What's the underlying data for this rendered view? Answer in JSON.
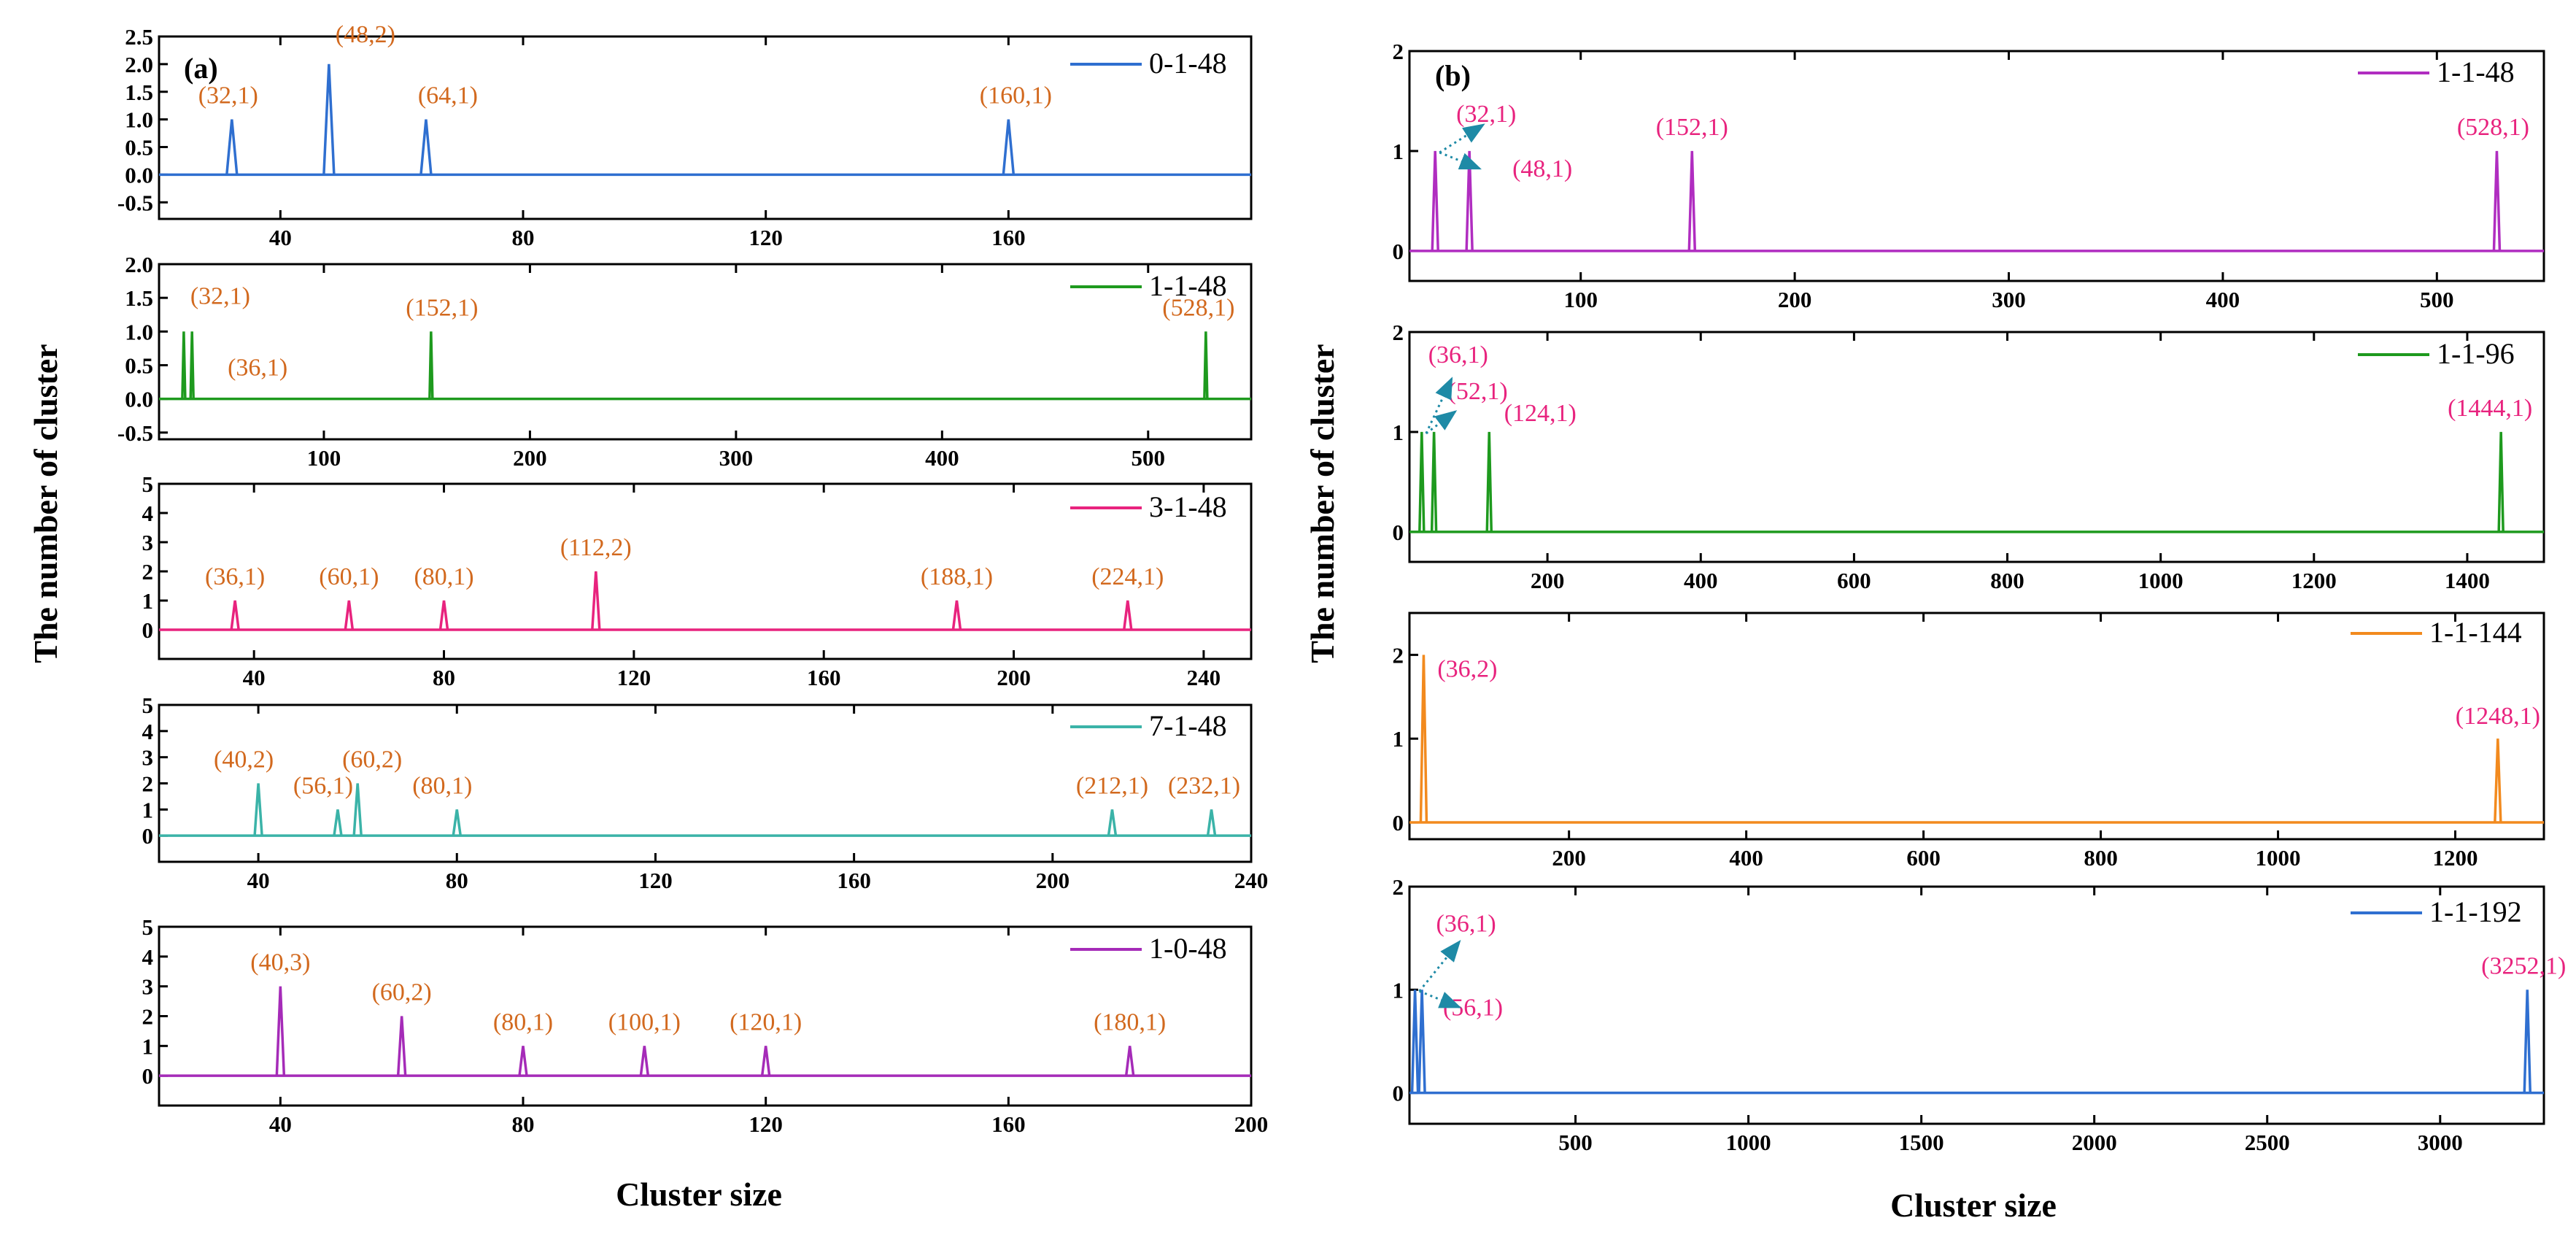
{
  "figure": {
    "ylabel_left": "The number of cluster",
    "ylabel_right": "The number of cluster",
    "xlabel_left": "Cluster size",
    "xlabel_right": "Cluster size",
    "panel_a_label": "(a)",
    "panel_b_label": "(b)"
  },
  "chart_data": [
    {
      "panel": "a",
      "type": "line",
      "series_name": "0-1-48",
      "color": "#2f6fd0",
      "ann_color": "#d2691e",
      "xlim": [
        20,
        200
      ],
      "ylim": [
        -0.8,
        2.5
      ],
      "xticks": [
        40,
        80,
        120,
        160
      ],
      "yticks": [
        -0.5,
        0.0,
        0.5,
        1.0,
        1.5,
        2.0,
        2.5
      ],
      "ytick_labels": [
        "-0.5",
        "0.0",
        "0.5",
        "1.0",
        "1.5",
        "2.0",
        "2.5"
      ],
      "peaks": [
        {
          "x": 32,
          "y": 1,
          "label": "(32,1)"
        },
        {
          "x": 48,
          "y": 2,
          "label": "(48,2)"
        },
        {
          "x": 64,
          "y": 1,
          "label": "(64,1)"
        },
        {
          "x": 160,
          "y": 1,
          "label": "(160,1)"
        }
      ]
    },
    {
      "panel": "a",
      "type": "line",
      "series_name": "1-1-48",
      "color": "#1e9a1e",
      "ann_color": "#d2691e",
      "xlim": [
        20,
        550
      ],
      "ylim": [
        -0.6,
        2.0
      ],
      "xticks": [
        100,
        200,
        300,
        400,
        500
      ],
      "yticks": [
        -0.5,
        0.0,
        0.5,
        1.0,
        1.5,
        2.0
      ],
      "ytick_labels": [
        "-0.5",
        "0.0",
        "0.5",
        "1.0",
        "1.5",
        "2.0"
      ],
      "peaks": [
        {
          "x": 32,
          "y": 1,
          "label": "(32,1)"
        },
        {
          "x": 36,
          "y": 1,
          "label": "(36,1)"
        },
        {
          "x": 152,
          "y": 1,
          "label": "(152,1)"
        },
        {
          "x": 528,
          "y": 1,
          "label": "(528,1)"
        }
      ]
    },
    {
      "panel": "a",
      "type": "line",
      "series_name": "3-1-48",
      "color": "#e8237e",
      "ann_color": "#d2691e",
      "xlim": [
        20,
        250
      ],
      "ylim": [
        -1,
        5
      ],
      "xticks": [
        40,
        80,
        120,
        160,
        200,
        240
      ],
      "yticks": [
        0,
        1,
        2,
        3,
        4,
        5
      ],
      "ytick_labels": [
        "0",
        "1",
        "2",
        "3",
        "4",
        "5"
      ],
      "peaks": [
        {
          "x": 36,
          "y": 1,
          "label": "(36,1)"
        },
        {
          "x": 60,
          "y": 1,
          "label": "(60,1)"
        },
        {
          "x": 80,
          "y": 1,
          "label": "(80,1)"
        },
        {
          "x": 112,
          "y": 2,
          "label": "(112,2)"
        },
        {
          "x": 188,
          "y": 1,
          "label": "(188,1)"
        },
        {
          "x": 224,
          "y": 1,
          "label": "(224,1)"
        }
      ]
    },
    {
      "panel": "a",
      "type": "line",
      "series_name": "7-1-48",
      "color": "#3bb3a8",
      "ann_color": "#d2691e",
      "xlim": [
        20,
        240
      ],
      "ylim": [
        -1,
        5
      ],
      "xticks": [
        40,
        80,
        120,
        160,
        200,
        240
      ],
      "yticks": [
        0,
        1,
        2,
        3,
        4,
        5
      ],
      "ytick_labels": [
        "0",
        "1",
        "2",
        "3",
        "4",
        "5"
      ],
      "peaks": [
        {
          "x": 40,
          "y": 2,
          "label": "(40,2)"
        },
        {
          "x": 56,
          "y": 1,
          "label": "(56,1)"
        },
        {
          "x": 60,
          "y": 2,
          "label": "(60,2)"
        },
        {
          "x": 80,
          "y": 1,
          "label": "(80,1)"
        },
        {
          "x": 212,
          "y": 1,
          "label": "(212,1)"
        },
        {
          "x": 232,
          "y": 1,
          "label": "(232,1)"
        }
      ]
    },
    {
      "panel": "a",
      "type": "line",
      "series_name": "1-0-48",
      "color": "#a52bb8",
      "ann_color": "#d2691e",
      "xlim": [
        20,
        200
      ],
      "ylim": [
        -1,
        5
      ],
      "xticks": [
        40,
        80,
        120,
        160,
        200
      ],
      "yticks": [
        0,
        1,
        2,
        3,
        4,
        5
      ],
      "ytick_labels": [
        "0",
        "1",
        "2",
        "3",
        "4",
        "5"
      ],
      "peaks": [
        {
          "x": 40,
          "y": 3,
          "label": "(40,3)"
        },
        {
          "x": 60,
          "y": 2,
          "label": "(60,2)"
        },
        {
          "x": 80,
          "y": 1,
          "label": "(80,1)"
        },
        {
          "x": 100,
          "y": 1,
          "label": "(100,1)"
        },
        {
          "x": 120,
          "y": 1,
          "label": "(120,1)"
        },
        {
          "x": 180,
          "y": 1,
          "label": "(180,1)"
        }
      ]
    },
    {
      "panel": "b",
      "type": "line",
      "series_name": "1-1-48",
      "color": "#b02dc0",
      "ann_color": "#e8237e",
      "xlim": [
        20,
        550
      ],
      "ylim": [
        -0.3,
        2
      ],
      "xticks": [
        100,
        200,
        300,
        400,
        500
      ],
      "yticks": [
        0,
        1,
        2
      ],
      "ytick_labels": [
        "0",
        "1",
        "2"
      ],
      "peaks": [
        {
          "x": 32,
          "y": 1,
          "label": "(32,1)"
        },
        {
          "x": 48,
          "y": 1,
          "label": "(48,1)"
        },
        {
          "x": 152,
          "y": 1,
          "label": "(152,1)"
        },
        {
          "x": 528,
          "y": 1,
          "label": "(528,1)"
        }
      ]
    },
    {
      "panel": "b",
      "type": "line",
      "series_name": "1-1-96",
      "color": "#1e9a1e",
      "ann_color": "#e8237e",
      "xlim": [
        20,
        1500
      ],
      "ylim": [
        -0.3,
        2
      ],
      "xticks": [
        200,
        400,
        600,
        800,
        1000,
        1200,
        1400
      ],
      "yticks": [
        0,
        1,
        2
      ],
      "ytick_labels": [
        "0",
        "1",
        "2"
      ],
      "peaks": [
        {
          "x": 36,
          "y": 1,
          "label": "(36,1)"
        },
        {
          "x": 52,
          "y": 1,
          "label": "(52,1)"
        },
        {
          "x": 124,
          "y": 1,
          "label": "(124,1)"
        },
        {
          "x": 1444,
          "y": 1,
          "label": "(1444,1)"
        }
      ]
    },
    {
      "panel": "b",
      "type": "line",
      "series_name": "1-1-144",
      "color": "#f28a1e",
      "ann_color": "#e8237e",
      "xlim": [
        20,
        1300
      ],
      "ylim": [
        -0.2,
        2.5
      ],
      "xticks": [
        200,
        400,
        600,
        800,
        1000,
        1200
      ],
      "yticks": [
        0,
        1,
        2
      ],
      "ytick_labels": [
        "0",
        "1",
        "2"
      ],
      "peaks": [
        {
          "x": 36,
          "y": 2,
          "label": "(36,2)"
        },
        {
          "x": 1248,
          "y": 1,
          "label": "(1248,1)"
        }
      ]
    },
    {
      "panel": "b",
      "type": "line",
      "series_name": "1-1-192",
      "color": "#2f6fd0",
      "ann_color": "#e8237e",
      "xlim": [
        20,
        3300
      ],
      "ylim": [
        -0.3,
        2
      ],
      "xticks": [
        500,
        1000,
        1500,
        2000,
        2500,
        3000
      ],
      "yticks": [
        0,
        1,
        2
      ],
      "ytick_labels": [
        "0",
        "1",
        "2"
      ],
      "peaks": [
        {
          "x": 36,
          "y": 1,
          "label": "(36,1)"
        },
        {
          "x": 56,
          "y": 1,
          "label": "(56,1)"
        },
        {
          "x": 3252,
          "y": 1,
          "label": "(3252,1)"
        }
      ]
    }
  ]
}
